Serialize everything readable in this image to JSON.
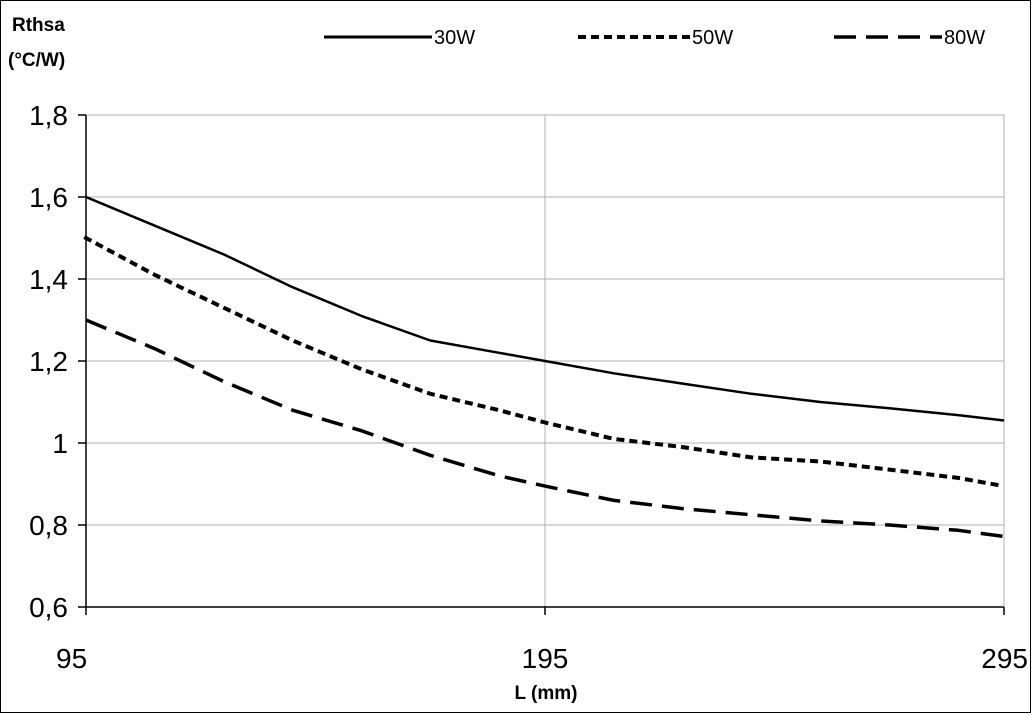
{
  "chart_data": {
    "type": "line",
    "ylabel_line1": "Rthsa",
    "ylabel_line2": "(°C/W)",
    "xlabel": "L (mm)",
    "xlim": [
      95,
      295
    ],
    "ylim": [
      0.6,
      1.8
    ],
    "x_ticks": [
      95,
      195,
      295
    ],
    "x_tick_labels": [
      "95",
      "195",
      "295"
    ],
    "y_ticks": [
      0.6,
      0.8,
      1.0,
      1.2,
      1.4,
      1.6,
      1.8
    ],
    "y_tick_labels": [
      "0,6",
      "0,8",
      "1",
      "1,2",
      "1,4",
      "1,6",
      "1,8"
    ],
    "grid": true,
    "legend_position": "top",
    "series": [
      {
        "name": "30W",
        "style": "solid",
        "color": "#000000",
        "x": [
          95,
          110,
          125,
          140,
          155,
          170,
          185,
          195,
          210,
          225,
          240,
          255,
          270,
          285,
          295
        ],
        "y": [
          1.6,
          1.53,
          1.46,
          1.38,
          1.31,
          1.25,
          1.22,
          1.2,
          1.17,
          1.145,
          1.12,
          1.1,
          1.085,
          1.068,
          1.055
        ]
      },
      {
        "name": "50W",
        "style": "dotted",
        "color": "#000000",
        "x": [
          95,
          110,
          125,
          140,
          155,
          170,
          185,
          195,
          210,
          225,
          240,
          255,
          270,
          285,
          295
        ],
        "y": [
          1.5,
          1.41,
          1.33,
          1.25,
          1.18,
          1.12,
          1.08,
          1.05,
          1.01,
          0.99,
          0.965,
          0.955,
          0.935,
          0.915,
          0.895
        ]
      },
      {
        "name": "80W",
        "style": "dashed",
        "color": "#000000",
        "x": [
          95,
          110,
          125,
          140,
          155,
          170,
          185,
          195,
          210,
          225,
          240,
          255,
          270,
          285,
          295
        ],
        "y": [
          1.3,
          1.23,
          1.15,
          1.08,
          1.03,
          0.97,
          0.92,
          0.895,
          0.86,
          0.84,
          0.825,
          0.81,
          0.8,
          0.787,
          0.772
        ]
      }
    ]
  }
}
